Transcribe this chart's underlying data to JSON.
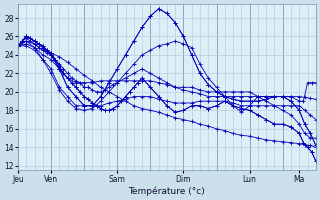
{
  "title": "Température (°c)",
  "bg_color": "#cce0ec",
  "plot_bg_color": "#ddeef7",
  "grid_color": "#aac8dc",
  "line_color": "#0000bb",
  "ylim": [
    11.5,
    29.5
  ],
  "yticks": [
    12,
    14,
    16,
    18,
    20,
    22,
    24,
    26,
    28
  ],
  "day_labels": [
    "Jeu",
    "Ven",
    "Sam",
    "Dim",
    "Lun",
    "Ma"
  ],
  "day_positions": [
    0,
    24,
    72,
    120,
    168,
    204
  ],
  "total_hours": 216,
  "lines": [
    {
      "x": [
        0,
        6,
        12,
        18,
        24,
        30,
        36,
        42,
        48,
        54,
        60,
        66,
        72,
        78,
        84,
        90,
        96,
        102,
        108,
        114,
        120,
        126,
        132,
        138,
        144,
        150,
        156,
        162,
        168,
        174,
        180,
        186,
        192,
        198,
        204,
        208,
        212,
        216
      ],
      "y": [
        25.0,
        25.5,
        25.2,
        24.5,
        24.2,
        23.8,
        23.2,
        22.5,
        21.8,
        21.2,
        20.5,
        20.0,
        19.5,
        19.0,
        18.5,
        18.2,
        18.0,
        17.8,
        17.5,
        17.2,
        17.0,
        16.8,
        16.5,
        16.3,
        16.0,
        15.8,
        15.5,
        15.3,
        15.2,
        15.0,
        14.8,
        14.7,
        14.6,
        14.5,
        14.4,
        14.3,
        14.2,
        14.0
      ]
    },
    {
      "x": [
        0,
        6,
        12,
        18,
        24,
        30,
        36,
        42,
        48,
        54,
        60,
        66,
        72,
        78,
        84,
        90,
        96,
        102,
        108,
        114,
        120,
        126,
        132,
        138,
        144,
        150,
        156,
        162,
        168,
        174,
        180,
        186,
        192,
        198,
        204,
        208,
        212,
        216
      ],
      "y": [
        25.0,
        25.2,
        24.8,
        24.0,
        23.5,
        22.5,
        21.5,
        21.0,
        21.0,
        21.0,
        21.2,
        21.2,
        21.2,
        21.2,
        21.2,
        21.2,
        21.2,
        21.0,
        20.8,
        20.5,
        20.2,
        20.0,
        19.8,
        19.5,
        19.5,
        19.5,
        19.5,
        19.5,
        19.5,
        19.5,
        19.5,
        19.5,
        19.5,
        19.5,
        19.5,
        19.4,
        19.3,
        19.2
      ]
    },
    {
      "x": [
        0,
        6,
        12,
        18,
        24,
        30,
        36,
        42,
        48,
        54,
        60,
        66,
        72,
        78,
        84,
        90,
        96,
        102,
        108,
        114,
        120,
        126,
        132,
        138,
        144,
        150,
        156,
        162,
        168,
        174,
        180,
        186,
        192,
        198,
        204,
        208,
        212,
        216
      ],
      "y": [
        25.0,
        25.0,
        24.5,
        23.5,
        22.5,
        20.5,
        19.5,
        18.5,
        18.5,
        18.5,
        18.5,
        18.8,
        19.0,
        19.2,
        19.5,
        19.5,
        19.5,
        19.2,
        19.0,
        18.8,
        18.8,
        18.8,
        19.0,
        19.0,
        19.0,
        19.0,
        18.8,
        18.5,
        18.5,
        18.5,
        18.5,
        18.5,
        18.5,
        18.5,
        18.5,
        18.0,
        17.5,
        17.0
      ]
    },
    {
      "x": [
        0,
        6,
        12,
        18,
        24,
        30,
        36,
        42,
        48,
        54,
        60,
        66,
        72,
        78,
        84,
        90,
        96,
        102,
        108,
        114,
        120,
        126,
        132,
        138,
        144,
        150,
        156,
        162,
        168,
        174,
        180,
        186,
        192,
        198,
        204,
        208,
        212,
        216
      ],
      "y": [
        25.0,
        25.5,
        24.8,
        23.5,
        22.0,
        20.2,
        19.0,
        18.2,
        18.0,
        18.2,
        19.0,
        20.0,
        21.0,
        22.0,
        23.0,
        24.0,
        24.5,
        25.0,
        25.2,
        25.5,
        25.2,
        24.8,
        23.0,
        21.5,
        20.5,
        19.5,
        18.5,
        17.8,
        18.5,
        19.5,
        19.0,
        18.5,
        18.0,
        17.5,
        16.5,
        15.5,
        15.0,
        15.0
      ]
    },
    {
      "x": [
        0,
        6,
        12,
        18,
        24,
        30,
        36,
        42,
        48,
        54,
        60,
        66,
        72,
        78,
        84,
        90,
        96,
        102,
        108,
        114,
        120,
        126,
        132,
        138,
        144,
        150,
        156,
        162,
        168,
        174,
        180,
        186,
        192,
        198,
        204,
        208,
        212,
        216
      ],
      "y": [
        25.0,
        26.0,
        25.5,
        24.8,
        24.0,
        22.5,
        20.5,
        19.5,
        18.5,
        18.5,
        19.5,
        21.0,
        22.5,
        24.0,
        25.5,
        27.0,
        28.2,
        29.0,
        28.5,
        27.5,
        26.0,
        24.0,
        22.0,
        20.8,
        20.0,
        19.5,
        19.2,
        19.0,
        19.0,
        19.0,
        19.2,
        19.5,
        19.5,
        19.0,
        18.0,
        16.5,
        15.5,
        14.2
      ]
    },
    {
      "x": [
        0,
        6,
        12,
        18,
        24,
        30,
        36,
        42,
        48,
        54,
        60,
        66,
        72,
        78,
        84,
        90,
        96,
        102,
        108,
        114,
        120,
        126,
        132,
        138,
        144,
        150,
        156,
        162,
        168,
        174,
        180,
        186,
        192,
        198,
        204,
        208,
        212,
        216
      ],
      "y": [
        25.0,
        26.0,
        25.5,
        24.8,
        24.0,
        22.5,
        20.5,
        19.5,
        18.5,
        18.5,
        19.5,
        21.0,
        22.5,
        24.0,
        25.5,
        27.0,
        28.2,
        29.0,
        28.5,
        27.5,
        26.0,
        24.0,
        22.0,
        20.8,
        20.0,
        19.5,
        19.2,
        19.0,
        19.0,
        19.0,
        19.2,
        19.5,
        19.5,
        19.0,
        18.0,
        16.5,
        15.5,
        14.2
      ]
    },
    {
      "x": [
        0,
        3,
        6,
        9,
        12,
        15,
        18,
        21,
        24,
        27,
        30,
        33,
        36,
        39,
        42,
        45,
        48,
        51,
        54,
        57,
        60,
        63,
        66,
        69,
        72,
        75,
        78,
        81,
        84,
        87,
        90,
        96,
        102,
        108,
        114,
        120,
        126,
        132,
        138,
        144,
        150,
        156,
        162,
        168,
        174,
        180,
        186,
        192,
        198,
        204,
        207,
        210,
        213,
        216
      ],
      "y": [
        25.0,
        25.5,
        26.0,
        25.8,
        25.5,
        25.2,
        25.0,
        24.5,
        24.2,
        23.5,
        22.8,
        22.0,
        21.5,
        21.0,
        20.5,
        20.0,
        19.5,
        19.2,
        18.8,
        18.5,
        18.2,
        18.0,
        18.0,
        18.2,
        18.5,
        19.0,
        19.5,
        20.0,
        20.5,
        21.0,
        21.5,
        20.5,
        19.5,
        18.5,
        17.8,
        18.0,
        18.5,
        18.5,
        18.2,
        18.5,
        19.0,
        18.5,
        18.2,
        18.0,
        17.5,
        17.0,
        16.5,
        16.5,
        16.2,
        15.5,
        14.5,
        14.0,
        13.5,
        12.5
      ]
    },
    {
      "x": [
        0,
        3,
        6,
        9,
        12,
        15,
        18,
        21,
        24,
        27,
        30,
        33,
        36,
        39,
        42,
        45,
        48,
        51,
        54,
        57,
        60,
        63,
        66,
        69,
        72,
        75,
        78,
        81,
        84,
        87,
        90,
        96,
        102,
        108,
        114,
        120,
        126,
        132,
        138,
        144,
        150,
        156,
        162,
        168,
        174,
        180,
        186,
        192,
        198,
        204,
        207,
        210,
        213,
        216
      ],
      "y": [
        25.0,
        25.5,
        26.0,
        25.8,
        25.5,
        25.2,
        25.0,
        24.5,
        24.2,
        23.5,
        22.8,
        22.0,
        21.5,
        21.0,
        20.5,
        20.0,
        19.5,
        19.2,
        18.8,
        18.5,
        18.2,
        18.0,
        18.0,
        18.2,
        18.5,
        19.0,
        19.5,
        20.0,
        20.5,
        21.0,
        21.5,
        20.5,
        19.5,
        18.5,
        17.8,
        18.0,
        18.5,
        18.5,
        18.2,
        18.5,
        19.0,
        18.5,
        18.2,
        18.0,
        17.5,
        17.0,
        16.5,
        16.5,
        16.2,
        15.5,
        14.5,
        14.0,
        13.5,
        12.5
      ]
    },
    {
      "x": [
        0,
        3,
        6,
        9,
        12,
        15,
        18,
        21,
        24,
        27,
        30,
        33,
        36,
        39,
        42,
        45,
        48,
        51,
        54,
        57,
        60,
        63,
        66,
        69,
        72,
        78,
        84,
        90,
        96,
        102,
        108,
        114,
        120,
        126,
        132,
        138,
        144,
        150,
        156,
        162,
        168,
        174,
        180,
        186,
        192,
        198,
        204,
        207,
        210,
        213,
        216
      ],
      "y": [
        25.0,
        25.5,
        25.8,
        25.5,
        25.2,
        24.8,
        24.5,
        24.2,
        24.0,
        23.5,
        23.0,
        22.5,
        22.0,
        21.5,
        21.2,
        21.0,
        20.5,
        20.5,
        20.2,
        20.0,
        20.0,
        20.2,
        20.5,
        20.8,
        21.0,
        21.5,
        22.0,
        22.5,
        22.0,
        21.5,
        21.0,
        20.5,
        20.5,
        20.5,
        20.2,
        20.0,
        20.0,
        20.0,
        20.0,
        20.0,
        20.0,
        19.5,
        19.5,
        19.5,
        19.5,
        19.5,
        19.0,
        19.0,
        21.0,
        21.0,
        21.0
      ]
    }
  ]
}
